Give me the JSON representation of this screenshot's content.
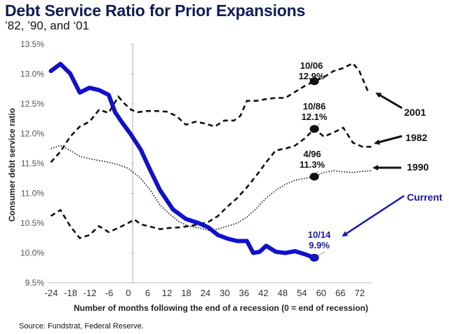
{
  "header": {
    "title": "Debt Service Ratio for Prior Expansions",
    "subtitle": "’82, ’90, and ‘01"
  },
  "source": "Source: Fundstrat, Federal Reserve.",
  "chart_data": {
    "type": "line",
    "title": "Debt Service Ratio for Prior Expansions",
    "subtitle": "'82, '90, and '01",
    "xlabel": "Number of months following the end of a recession (0 = end of recession)",
    "ylabel": "Consumer debt service ratio",
    "xlim": [
      -26,
      76
    ],
    "ylim": [
      9.5,
      13.5
    ],
    "x_ticks": [
      -24,
      -18,
      -12,
      -6,
      0,
      6,
      12,
      18,
      24,
      30,
      36,
      42,
      48,
      54,
      60,
      66,
      72
    ],
    "x_tick_labels": [
      "-24",
      "-18",
      "-12",
      "-6",
      "0",
      "6",
      "12",
      "18",
      "24",
      "30",
      "36",
      "42",
      "48",
      "54",
      "60",
      "66",
      "72"
    ],
    "y_ticks": [
      9.5,
      10.0,
      10.5,
      11.0,
      11.5,
      12.0,
      12.5,
      13.0,
      13.5
    ],
    "y_tick_labels": [
      "9.5%",
      "10.0%",
      "10.5%",
      "11.0%",
      "11.5%",
      "12.0%",
      "12.5%",
      "13.0%",
      "13.5%"
    ],
    "grid": false,
    "zero_line_x": 0,
    "series": [
      {
        "name": "Current",
        "style": "solid",
        "color": "#1010d0",
        "x": [
          -25,
          -22,
          -19,
          -16,
          -13,
          -10,
          -7,
          -5,
          -3,
          0,
          3,
          6,
          9,
          13,
          17,
          21,
          24,
          27,
          30,
          33,
          36,
          38,
          40,
          42,
          45,
          48,
          51,
          54,
          57
        ],
        "values": [
          13.05,
          13.17,
          13.01,
          12.69,
          12.77,
          12.73,
          12.65,
          12.36,
          12.2,
          11.98,
          11.73,
          11.38,
          11.05,
          10.73,
          10.57,
          10.5,
          10.43,
          10.3,
          10.24,
          10.2,
          10.2,
          10.0,
          10.02,
          10.12,
          10.02,
          10.0,
          10.03,
          9.98,
          9.92
        ]
      },
      {
        "name": "2001",
        "style": "dashed",
        "color": "#111111",
        "x": [
          -25,
          -22,
          -19,
          -16,
          -13,
          -10,
          -7,
          -4,
          -2,
          0,
          2,
          5,
          8,
          11,
          14,
          17,
          20,
          23,
          26,
          29,
          32,
          34,
          36,
          39,
          42,
          45,
          48,
          51,
          54,
          57,
          60,
          63,
          66,
          69,
          71,
          74
        ],
        "values": [
          11.52,
          11.7,
          11.95,
          12.12,
          12.2,
          12.4,
          12.35,
          12.62,
          12.5,
          12.4,
          12.36,
          12.38,
          12.38,
          12.37,
          12.3,
          12.15,
          12.2,
          12.17,
          12.12,
          12.22,
          12.22,
          12.3,
          12.55,
          12.55,
          12.58,
          12.6,
          12.6,
          12.7,
          12.8,
          12.88,
          12.95,
          13.05,
          13.1,
          13.18,
          13.05,
          12.67
        ]
      },
      {
        "name": "1982",
        "style": "dashed",
        "color": "#111111",
        "x": [
          -25,
          -22,
          -19,
          -16,
          -13,
          -10,
          -7,
          -4,
          -1,
          1,
          3,
          6,
          9,
          12,
          15,
          18,
          21,
          24,
          27,
          30,
          33,
          36,
          39,
          42,
          45,
          48,
          51,
          54,
          57,
          60,
          63,
          66,
          69,
          72,
          75
        ],
        "values": [
          10.62,
          10.72,
          10.45,
          10.25,
          10.3,
          10.45,
          10.35,
          10.42,
          10.5,
          10.56,
          10.48,
          10.44,
          10.4,
          10.42,
          10.43,
          10.45,
          10.48,
          10.52,
          10.62,
          10.78,
          10.92,
          11.1,
          11.3,
          11.52,
          11.72,
          11.75,
          11.8,
          11.92,
          12.08,
          11.95,
          12.02,
          12.1,
          11.85,
          11.78,
          11.78
        ]
      },
      {
        "name": "1990",
        "style": "dotted",
        "color": "#111111",
        "x": [
          -25,
          -22,
          -19,
          -16,
          -13,
          -10,
          -7,
          -4,
          -1,
          0,
          3,
          6,
          9,
          12,
          15,
          18,
          21,
          24,
          27,
          30,
          33,
          36,
          39,
          42,
          45,
          48,
          51,
          54,
          57,
          60,
          63,
          66,
          69,
          72,
          75
        ],
        "values": [
          11.75,
          11.8,
          11.72,
          11.62,
          11.58,
          11.55,
          11.52,
          11.48,
          11.42,
          11.38,
          11.25,
          11.05,
          10.8,
          10.65,
          10.52,
          10.45,
          10.42,
          10.38,
          10.4,
          10.45,
          10.5,
          10.6,
          10.75,
          10.92,
          11.05,
          11.15,
          11.22,
          11.25,
          11.28,
          11.35,
          11.38,
          11.36,
          11.35,
          11.37,
          11.38
        ]
      }
    ],
    "annotations": [
      {
        "label_line1": "10/06",
        "label_line2": "12.9%",
        "series": "2001",
        "x": 57,
        "y": 12.88,
        "color": "#111111"
      },
      {
        "label_line1": "10/86",
        "label_line2": "12.1%",
        "series": "1982",
        "x": 57,
        "y": 12.08,
        "color": "#111111"
      },
      {
        "label_line1": "4/96",
        "label_line2": "11.3%",
        "series": "1990",
        "x": 57,
        "y": 11.28,
        "color": "#111111"
      },
      {
        "label_line1": "10/14",
        "label_line2": "9.9%",
        "series": "Current",
        "x": 57,
        "y": 9.92,
        "color": "#1515c8"
      }
    ],
    "legend": [
      {
        "name": "2001",
        "placement": "right",
        "color": "#111111"
      },
      {
        "name": "1982",
        "placement": "right",
        "color": "#111111"
      },
      {
        "name": "1990",
        "placement": "right",
        "color": "#111111"
      },
      {
        "name": "Current",
        "placement": "right",
        "color": "#1515c8"
      }
    ]
  }
}
